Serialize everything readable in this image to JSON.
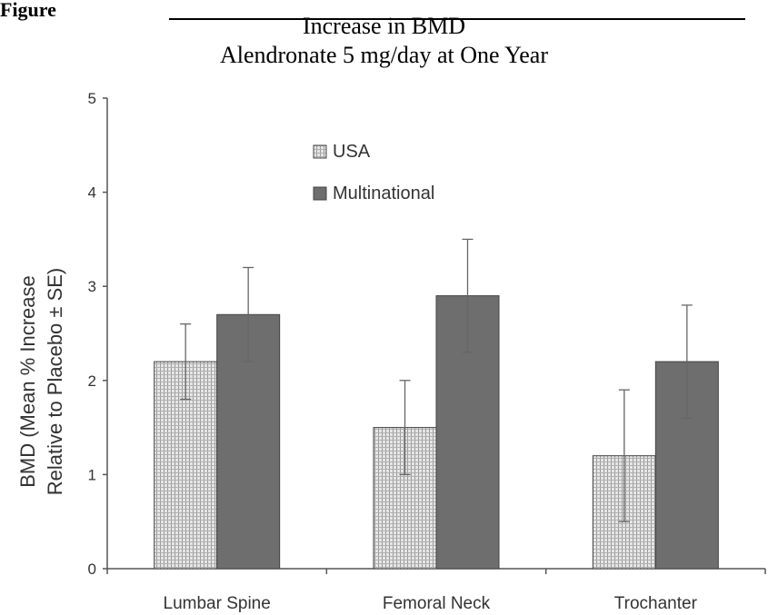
{
  "figure_label": "Figure",
  "chart_data": {
    "type": "bar",
    "title_line1": "Increase in BMD",
    "title_line2": "Alendronate 5 mg/day at One Year",
    "ylabel_line1": "BMD (Mean % Increase",
    "ylabel_line2": "Relative to Placebo ± SE)",
    "xlabel": "",
    "ylim": [
      0,
      5
    ],
    "yticks": [
      "0",
      "1",
      "2",
      "3",
      "4",
      "5"
    ],
    "categories": [
      "Lumbar Spine",
      "Femoral Neck",
      "Trochanter"
    ],
    "series": [
      {
        "name": "USA",
        "values": [
          2.2,
          1.5,
          1.2
        ],
        "error": [
          0.4,
          0.5,
          0.7
        ],
        "color": "#d9d9d9"
      },
      {
        "name": "Multinational",
        "values": [
          2.7,
          2.9,
          2.2
        ],
        "error": [
          0.5,
          0.6,
          0.6
        ],
        "color": "#6e6e6e"
      }
    ],
    "grid": false,
    "legend_position": "upper-center"
  }
}
